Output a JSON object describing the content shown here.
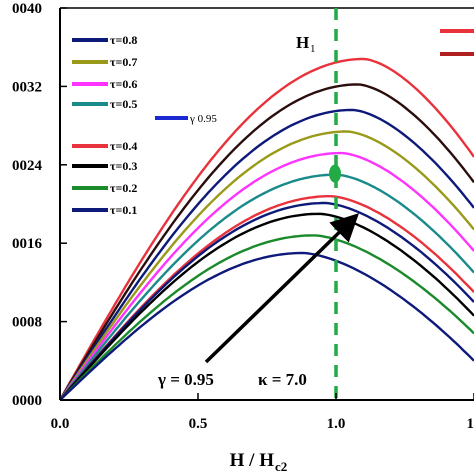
{
  "chart_data": {
    "type": "line",
    "xlabel_main": "H / H",
    "xlabel_sub": "c2",
    "ylabel": "",
    "xlim": [
      0.0,
      1.5
    ],
    "ylim": [
      0.0,
      0.004
    ],
    "x_ticks": [
      {
        "value": 0.0,
        "label": "0.0"
      },
      {
        "value": 0.5,
        "label": "0.5"
      },
      {
        "value": 1.0,
        "label": "1.0"
      },
      {
        "value": 1.5,
        "label": "1"
      }
    ],
    "y_ticks": [
      {
        "value": 0.0,
        "label": "0000"
      },
      {
        "value": 0.0008,
        "label": "0008"
      },
      {
        "value": 0.0016,
        "label": "0016"
      },
      {
        "value": 0.0024,
        "label": "0024"
      },
      {
        "value": 0.0032,
        "label": "0032"
      },
      {
        "value": 0.004,
        "label": "0040"
      }
    ],
    "vline": {
      "x": 1.0,
      "label_main": "H",
      "label_sub": "1",
      "color": "#22aa44"
    },
    "series": [
      {
        "name": "τ=0.8",
        "color": "#e8323c",
        "legend_color": "#0d1a7a",
        "peak_x": 1.1,
        "peak_y": 0.00348,
        "end_y": 0.00248
      },
      {
        "name": "τ=0.7",
        "color": "#2b0d0d",
        "legend_color": "#8a8a1a",
        "peak_x": 1.08,
        "peak_y": 0.00322,
        "end_y": 0.00222
      },
      {
        "name": "τ=0.6",
        "color": "#0d1a7a",
        "legend_color": "#ff33ff",
        "peak_x": 1.06,
        "peak_y": 0.00296,
        "end_y": 0.00196
      },
      {
        "name": "τ=0.5",
        "color": "#9a9a1a",
        "legend_color": "#1a8a8a",
        "peak_x": 1.04,
        "peak_y": 0.00274,
        "end_y": 0.00174
      },
      {
        "name": "τ=0.4",
        "color": "#ff33ff",
        "legend_color": "#e8323c",
        "peak_x": 1.02,
        "peak_y": 0.00252,
        "end_y": 0.00152
      },
      {
        "name": "τ=0.3",
        "color": "#1a8a8a",
        "legend_color": "#000000",
        "peak_x": 1.0,
        "peak_y": 0.0023,
        "end_y": 0.0013
      },
      {
        "name": "τ=0.2",
        "color": "#e8323c",
        "legend_color": "#1a8a2a",
        "peak_x": 0.98,
        "peak_y": 0.00208,
        "end_y": 0.0011
      },
      {
        "name": "τ=0.1",
        "color": "#0d1a7a",
        "legend_color": "#0d1a7a",
        "peak_x": 0.96,
        "peak_y": 0.00201,
        "end_y": 0.001
      },
      {
        "name": "",
        "color": "#000000",
        "peak_x": 0.94,
        "peak_y": 0.0019,
        "end_y": 0.00086
      },
      {
        "name": "",
        "color": "#1a8a2a",
        "peak_x": 0.92,
        "peak_y": 0.00168,
        "end_y": 0.00068
      },
      {
        "name": "",
        "color": "#0d1a7a",
        "peak_x": 0.88,
        "peak_y": 0.0015,
        "end_y": 0.0004
      }
    ],
    "legend": [
      {
        "label": "τ=0.8",
        "color": "#0d1a7a"
      },
      {
        "label": "τ=0.7",
        "color": "#9a9a1a"
      },
      {
        "label": "τ=0.6",
        "color": "#ff33ff"
      },
      {
        "label": "τ=0.5",
        "color": "#1a8a8a"
      },
      {
        "label": "τ=0.4",
        "color": "#e8323c"
      },
      {
        "label": "τ=0.3",
        "color": "#000000"
      },
      {
        "label": "τ=0.2",
        "color": "#1a8a2a"
      },
      {
        "label": "τ=0.1",
        "color": "#0d1a7a"
      }
    ],
    "gamma_legend": {
      "label": "γ  0.95",
      "color": "#1a2ad0"
    },
    "top_right_legend": [
      {
        "color": "#e8323c"
      },
      {
        "color": "#b02020"
      }
    ],
    "annotation": {
      "gamma": "γ = 0.95",
      "kappa": "κ = 7.0"
    },
    "marker": {
      "x": 1.0,
      "y": 0.00229,
      "color": "#22aa44"
    }
  }
}
